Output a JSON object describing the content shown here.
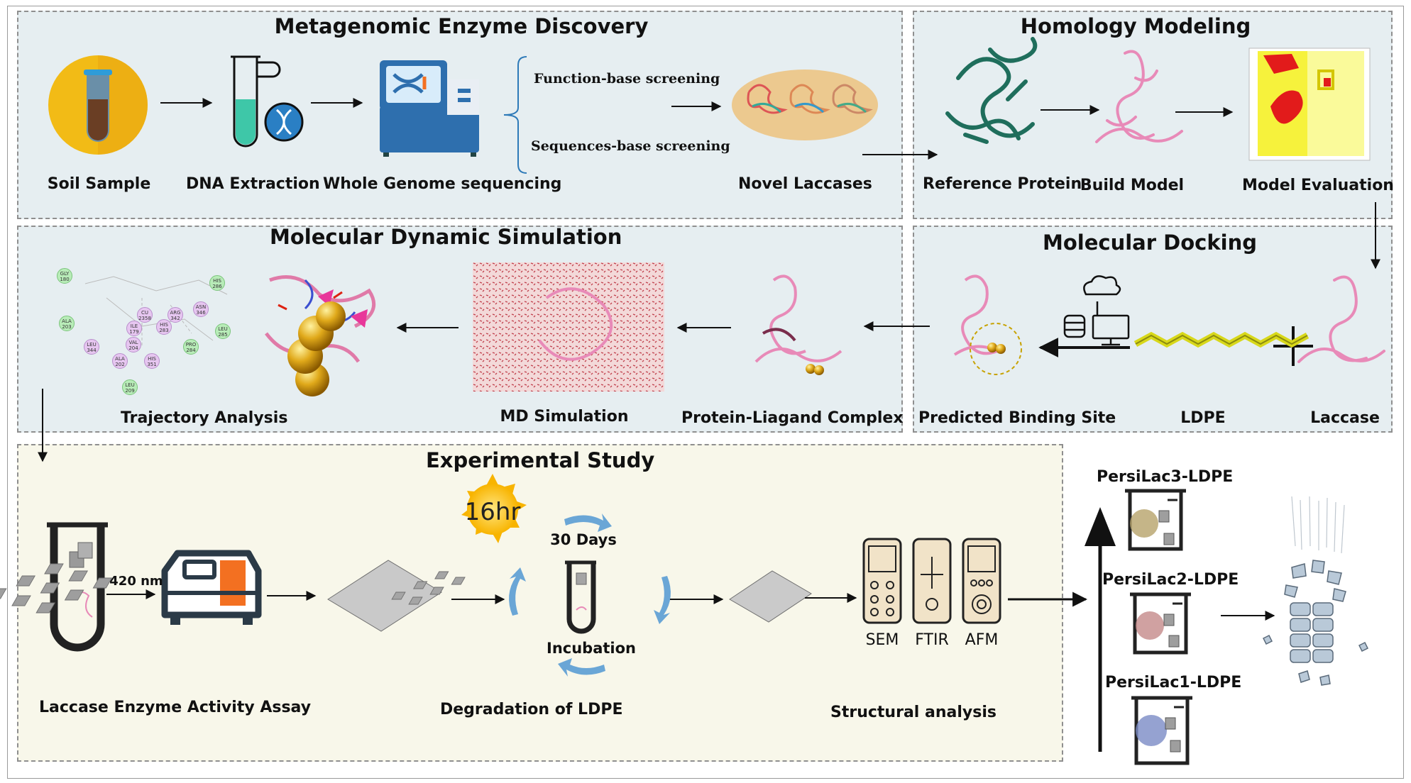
{
  "panels": {
    "metagenomic": {
      "title": "Metagenomic Enzyme Discovery",
      "soil_sample": "Soil Sample",
      "dna_extraction": "DNA Extraction",
      "whole_genome": "Whole Genome sequencing",
      "function_screening": "Function-base screening",
      "sequence_screening": "Sequences-base screening",
      "novel_laccases": "Novel Laccases"
    },
    "homology": {
      "title": "Homology Modeling",
      "reference_protein": "Reference Protein",
      "build_model": "Build Model",
      "model_evaluation": "Model Evaluation"
    },
    "md": {
      "title": "Molecular Dynamic Simulation",
      "trajectory_analysis": "Trajectory Analysis",
      "md_simulation": "MD Simulation",
      "protein_ligand": "Protein-Liagand Complex",
      "residues": [
        "GLY 180",
        "HIS 286",
        "ALA 203",
        "CU 2358",
        "ARG 342",
        "ASN 346",
        "ILE 179",
        "HIS 283",
        "LEU 285",
        "LEU 344",
        "VAL 204",
        "PRO 284",
        "ALA 202",
        "HIS 351",
        "LEU 209"
      ]
    },
    "docking": {
      "title": "Molecular Docking",
      "predicted_site": "Predicted Binding Site",
      "ldpe": "LDPE",
      "laccase": "Laccase"
    },
    "experimental": {
      "title": "Experimental Study",
      "assay": "Laccase Enzyme Activity Assay",
      "wavelength": "420 nm",
      "sun_label": "16hr",
      "days": "30 Days",
      "incubation": "Incubation",
      "degradation": "Degradation of LDPE",
      "sem": "SEM",
      "ftir": "FTIR",
      "afm": "AFM",
      "structural": "Structural analysis"
    },
    "results": {
      "lac3": "PersiLac3-LDPE",
      "lac2": "PersiLac2-LDPE",
      "lac1": "PersiLac1-LDPE"
    }
  },
  "colors": {
    "panel_bg": "#e6eef1",
    "exp_bg": "#f8f7ea",
    "protein_pink": "#e88ab8",
    "ref_protein_green": "#1f6e5c",
    "ldpe_yellow": "#d8d81a",
    "accent_orange": "#f37021",
    "arrow_blue": "#6aa6d6"
  }
}
